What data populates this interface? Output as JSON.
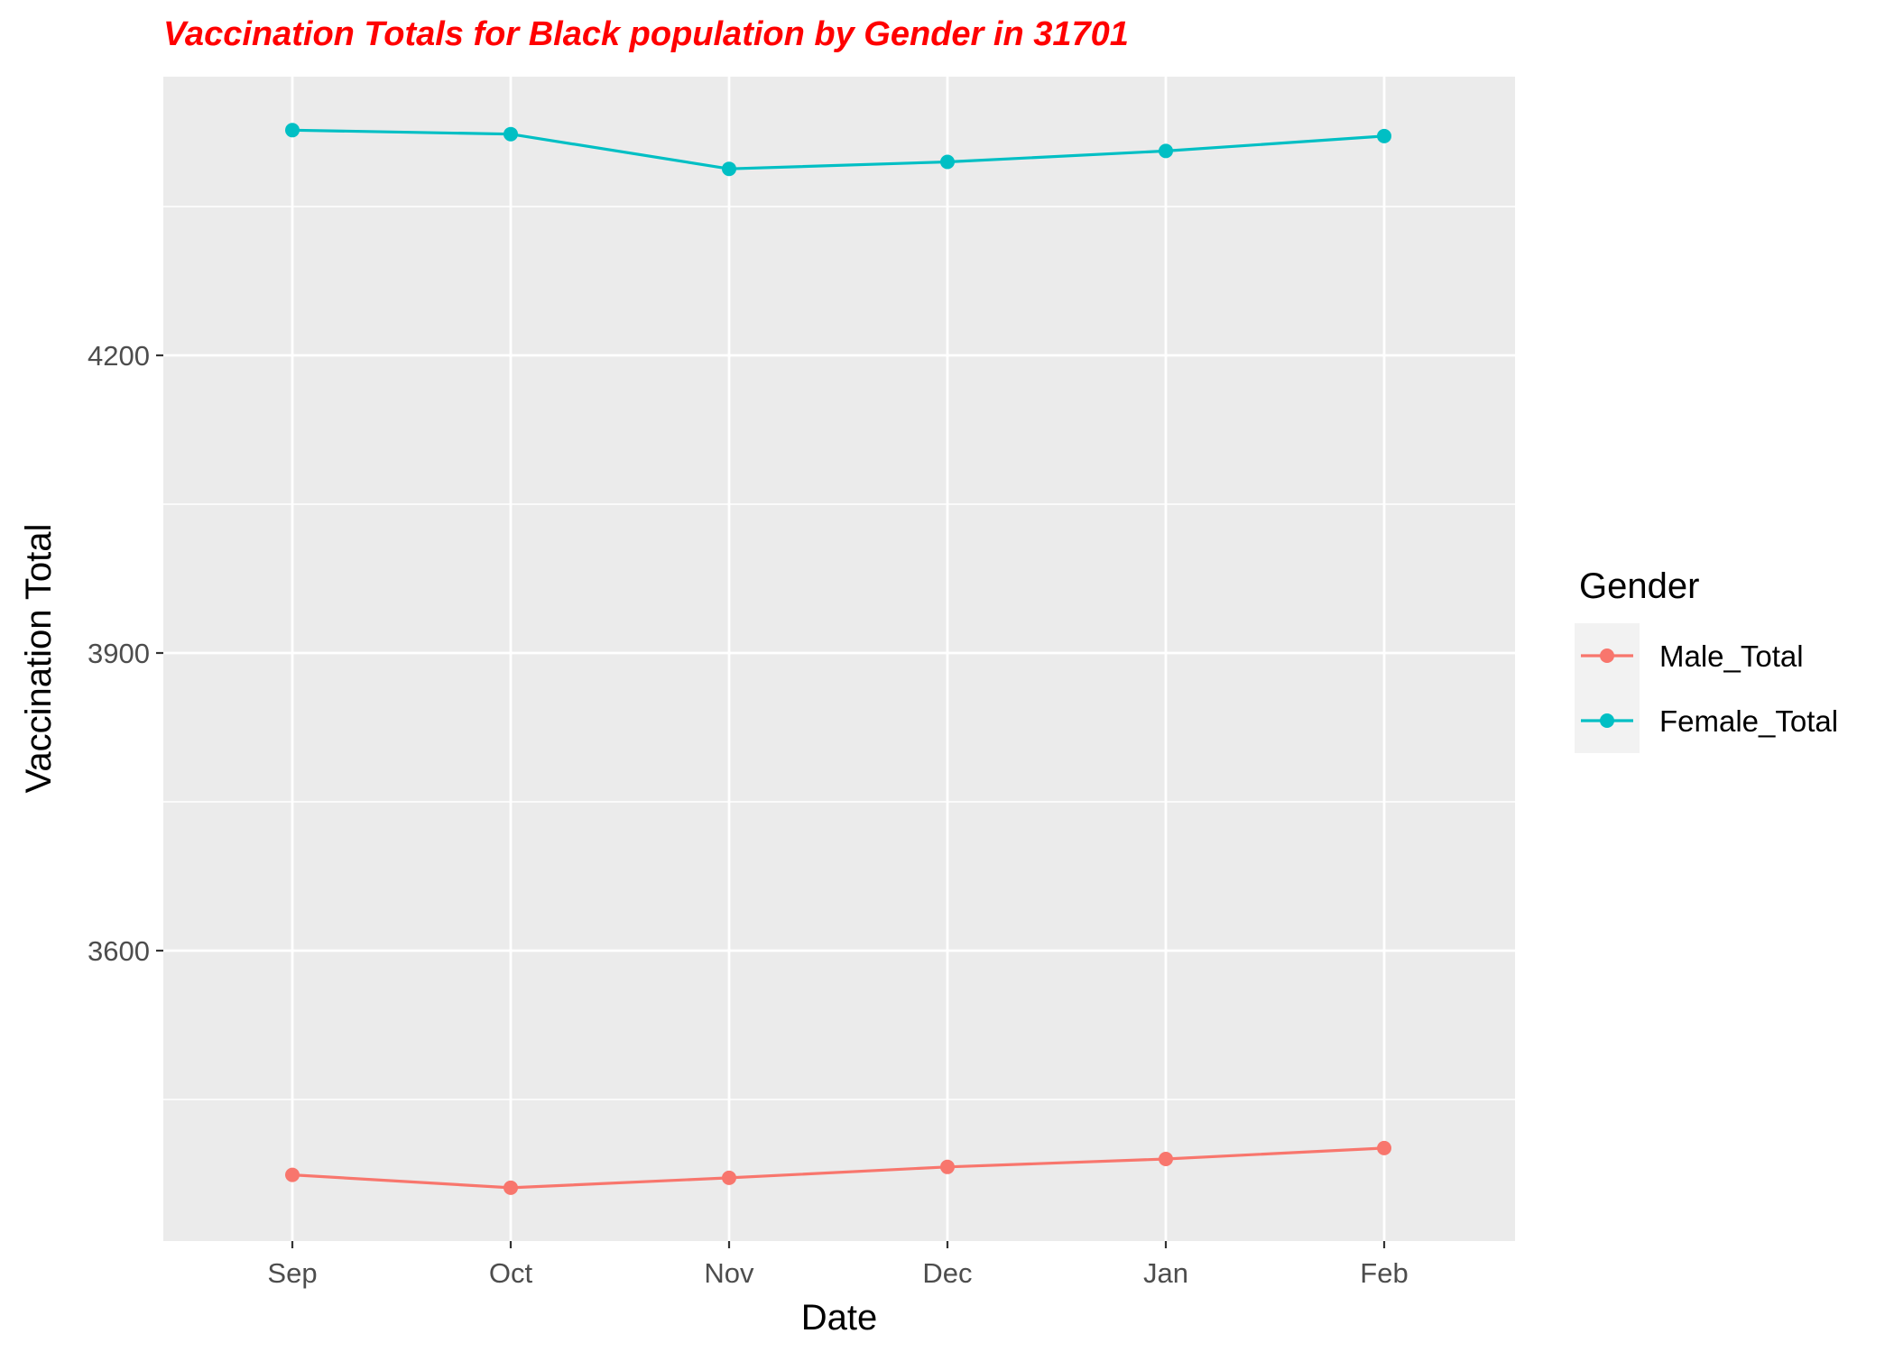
{
  "chart_data": {
    "type": "line",
    "title": "Vaccination Totals for Black population by Gender in 31701",
    "xlabel": "Date",
    "ylabel": "Vaccination Total",
    "categories": [
      "Sep",
      "Oct",
      "Nov",
      "Dec",
      "Jan",
      "Feb"
    ],
    "y_ticks": [
      3600,
      3900,
      4200
    ],
    "y_tick_labels": [
      "3600",
      "3900",
      "4200"
    ],
    "ylim": [
      3362,
      4474
    ],
    "grid": true,
    "legend": {
      "title": "Gender",
      "position": "right"
    },
    "series": [
      {
        "name": "Male_Total",
        "color": "#F8766D",
        "values": [
          3374,
          3361,
          3371,
          3382,
          3390,
          3401
        ]
      },
      {
        "name": "Female_Total",
        "color": "#00BFC4",
        "values": [
          4427,
          4423,
          4388,
          4395,
          4406,
          4421
        ]
      }
    ],
    "colors": {
      "title": "#FF0000",
      "panel_background": "#EBEBEB",
      "gridline": "#FFFFFF",
      "legend_key_background": "#F2F2F2"
    }
  }
}
